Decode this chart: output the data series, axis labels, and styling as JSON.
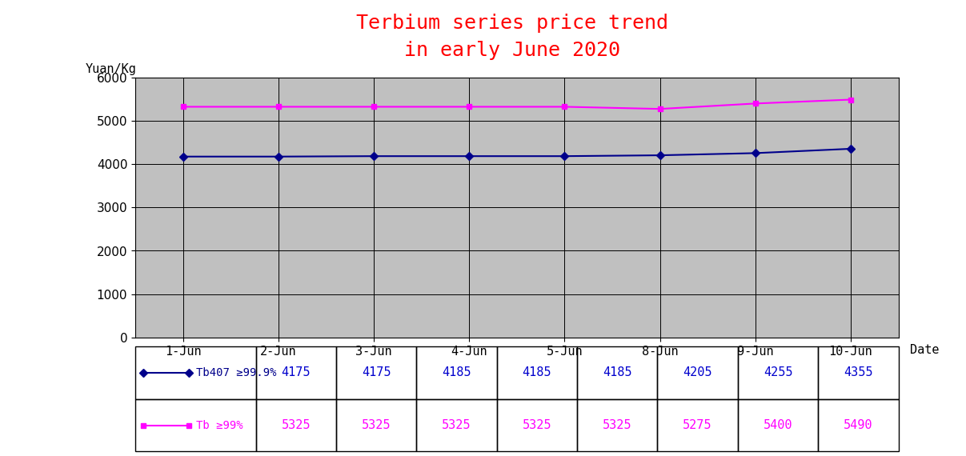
{
  "title_line1": "Terbium series price trend",
  "title_line2": "in early June 2020",
  "title_color": "#FF0000",
  "title_fontsize": 18,
  "ylabel": "Yuan/Kg",
  "xlabel": "Date",
  "dates": [
    "1-Jun",
    "2-Jun",
    "3-Jun",
    "4-Jun",
    "5-Jun",
    "8-Jun",
    "9-Jun",
    "10-Jun"
  ],
  "series": [
    {
      "label": "Tb407 ≥99.9%",
      "values": [
        4175,
        4175,
        4185,
        4185,
        4185,
        4205,
        4255,
        4355
      ],
      "color": "#00008B",
      "marker": "D",
      "markersize": 5
    },
    {
      "label": "Tb ≥99%",
      "values": [
        5325,
        5325,
        5325,
        5325,
        5325,
        5275,
        5400,
        5490
      ],
      "color": "#FF00FF",
      "marker": "s",
      "markersize": 5
    }
  ],
  "ylim": [
    0,
    6000
  ],
  "yticks": [
    0,
    1000,
    2000,
    3000,
    4000,
    5000,
    6000
  ],
  "plot_bg_color": "#C0C0C0",
  "fig_bg_color": "#FFFFFF",
  "grid_color": "#000000",
  "table_border_color": "#000000",
  "tick_label_color": "#000000",
  "axis_label_color": "#000000",
  "value_color_tb407": "#0000CD",
  "value_color_tb": "#FF00FF"
}
